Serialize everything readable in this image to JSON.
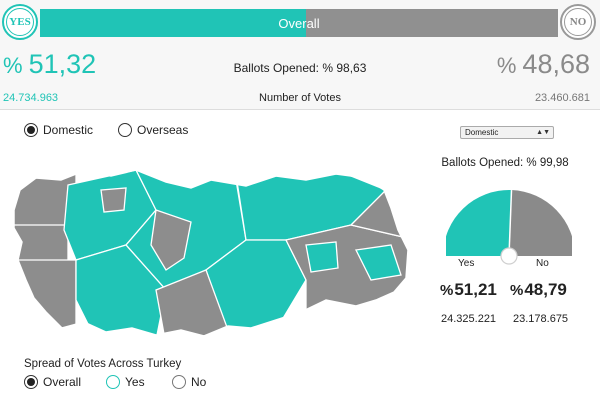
{
  "header": {
    "yes_badge": "YES",
    "no_badge": "NO",
    "overall_label": "Overall",
    "overall_yes_fraction": 0.5132,
    "yes_percent_prefix": "%",
    "yes_percent": "51,32",
    "no_percent_prefix": "%",
    "no_percent": "48,68",
    "ballots_opened_label": "Ballots Opened:",
    "ballots_opened_value": "% 98,63",
    "yes_votes": "24.734.963",
    "no_votes": "23.460.681",
    "number_of_votes_label": "Number of Votes"
  },
  "scope": {
    "options": [
      "Domestic",
      "Overseas"
    ],
    "selected": "Domestic"
  },
  "region_select": {
    "value": "Domestic"
  },
  "right_panel": {
    "ballots_opened_label": "Ballots Opened:",
    "ballots_opened_value": "% 99,98",
    "gauge_yes_label": "Yes",
    "gauge_no_label": "No",
    "yes_fraction": 0.5121,
    "yes_percent_prefix": "%",
    "yes_percent": "51,21",
    "no_percent_prefix": "%",
    "no_percent": "48,79",
    "yes_votes": "24.325.221",
    "no_votes": "23.178.675"
  },
  "spread": {
    "title": "Spread of Votes Across Turkey",
    "options": [
      "Overall",
      "Yes",
      "No"
    ],
    "selected": "Overall"
  },
  "colors": {
    "yes": "#20c4b6",
    "no": "#8a8a8a",
    "map_no": "#8d8d8d",
    "map_border": "#ffffff"
  }
}
